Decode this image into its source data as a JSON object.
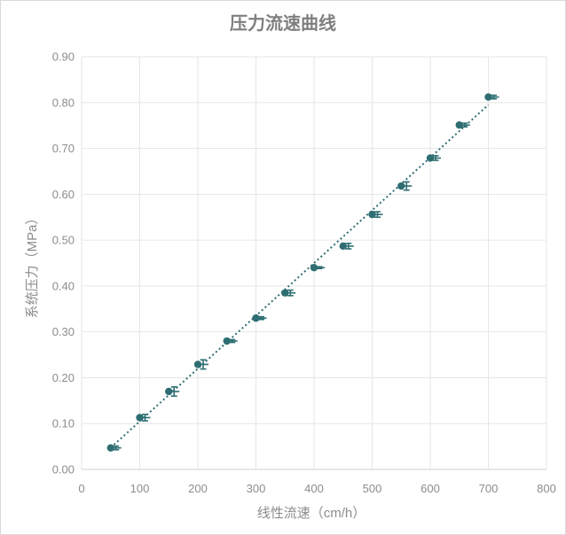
{
  "chart_data": {
    "type": "scatter",
    "title": "压力流速曲线",
    "xlabel": "线性流速（cm/h）",
    "ylabel": "系统压力（MPa）",
    "xlim": [
      0,
      800
    ],
    "ylim": [
      0,
      0.9
    ],
    "x_ticks": [
      "0",
      "100",
      "200",
      "300",
      "400",
      "500",
      "600",
      "700",
      "800"
    ],
    "y_ticks": [
      "0.00",
      "0.10",
      "0.20",
      "0.30",
      "0.40",
      "0.50",
      "0.60",
      "0.70",
      "0.80",
      "0.90"
    ],
    "grid": true,
    "trendline": "linear dotted",
    "series": [
      {
        "x": [
          50,
          100,
          150,
          200,
          250,
          300,
          350,
          400,
          450,
          500,
          550,
          600,
          650,
          700
        ],
        "y": [
          0.047,
          0.113,
          0.17,
          0.229,
          0.28,
          0.33,
          0.385,
          0.44,
          0.487,
          0.556,
          0.618,
          0.679,
          0.751,
          0.812
        ],
        "error_y": [
          0.004,
          0.007,
          0.01,
          0.01,
          0.003,
          0.003,
          0.006,
          0.002,
          0.006,
          0.006,
          0.009,
          0.005,
          0.004,
          0.004
        ]
      }
    ],
    "colors": {
      "marker": "#2e6e73",
      "trendline": "#2e6e73",
      "grid": "#e6e6e6",
      "text": "#8c8c8c"
    }
  }
}
